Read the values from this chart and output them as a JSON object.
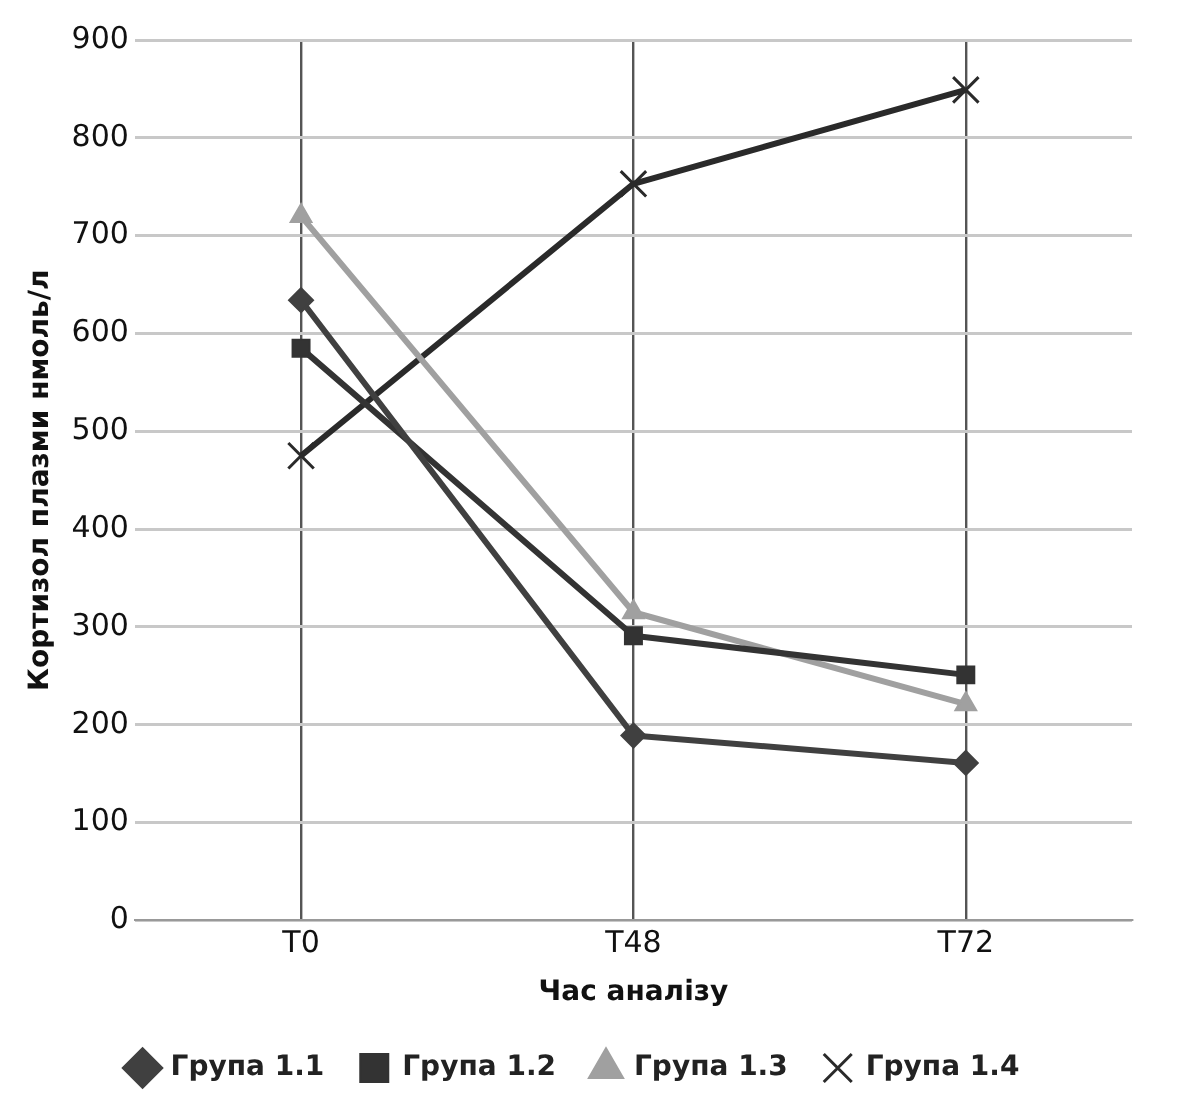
{
  "chart_data": {
    "type": "line",
    "xlabel": "Час аналізу",
    "ylabel": "Кортизол плазми нмоль/л",
    "categories": [
      "T0",
      "T48",
      "T72"
    ],
    "series": [
      {
        "name": "Група 1.1",
        "color": "#404040",
        "marker": "diamond",
        "values": [
          634,
          189,
          161
        ]
      },
      {
        "name": "Група 1.2",
        "color": "#333333",
        "marker": "square",
        "values": [
          585,
          291,
          251
        ]
      },
      {
        "name": "Група 1.3",
        "color": "#a0a0a0",
        "marker": "triangle",
        "values": [
          720,
          315,
          221
        ]
      },
      {
        "name": "Група 1.4",
        "color": "#2a2a2a",
        "marker": "cross",
        "values": [
          475,
          753,
          849
        ]
      }
    ],
    "ylim": [
      0,
      900
    ],
    "yticks": [
      0,
      100,
      200,
      300,
      400,
      500,
      600,
      700,
      800,
      900
    ],
    "grid": true,
    "legend": "bottom",
    "line_style": "solid"
  }
}
